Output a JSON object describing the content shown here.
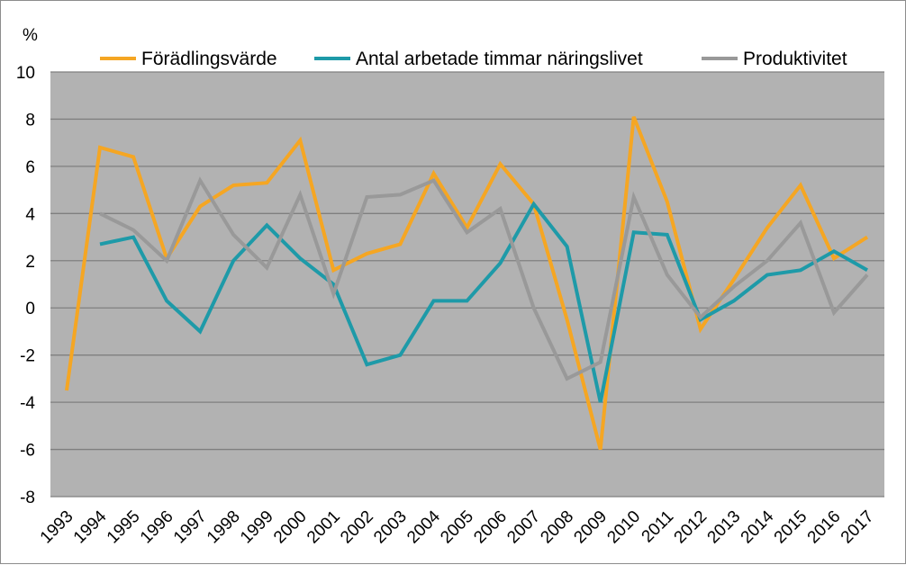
{
  "chart_data": {
    "type": "line",
    "title": "",
    "ylabel": "%",
    "xlabel": "",
    "ylim": [
      -8,
      10
    ],
    "ytick_step": 2,
    "grid": true,
    "legend_position": "top",
    "plot_background": "#b2b2b2",
    "categories": [
      "1993",
      "1994",
      "1995",
      "1996",
      "1997",
      "1998",
      "1999",
      "2000",
      "2001",
      "2002",
      "2003",
      "2004",
      "2005",
      "2006",
      "2007",
      "2008",
      "2009",
      "2010",
      "2011",
      "2012",
      "2013",
      "2014",
      "2015",
      "2016",
      "2017"
    ],
    "series": [
      {
        "name": "Förädlingsvärde",
        "color": "#f5a623",
        "values": [
          -3.5,
          6.8,
          6.4,
          2.1,
          4.3,
          5.2,
          5.3,
          7.1,
          1.6,
          2.3,
          2.7,
          5.7,
          3.4,
          6.1,
          4.4,
          -0.5,
          -6.0,
          8.1,
          4.5,
          -0.9,
          1.2,
          3.4,
          5.2,
          2.1,
          3.0
        ]
      },
      {
        "name": "Antal arbetade timmar näringslivet",
        "color": "#1e9aa8",
        "values": [
          null,
          2.7,
          3.0,
          0.3,
          -1.0,
          2.0,
          3.5,
          2.1,
          1.0,
          -2.4,
          -2.0,
          0.3,
          0.3,
          1.9,
          4.4,
          2.6,
          -4.0,
          3.2,
          3.1,
          -0.5,
          0.3,
          1.4,
          1.6,
          2.4,
          1.6
        ]
      },
      {
        "name": "Produktivitet",
        "color": "#999999",
        "values": [
          null,
          4.0,
          3.3,
          2.0,
          5.4,
          3.1,
          1.7,
          4.8,
          0.6,
          4.7,
          4.8,
          5.4,
          3.2,
          4.2,
          0.0,
          -3.0,
          -2.3,
          4.7,
          1.4,
          -0.4,
          0.9,
          2.0,
          3.6,
          -0.2,
          1.4
        ]
      }
    ]
  }
}
